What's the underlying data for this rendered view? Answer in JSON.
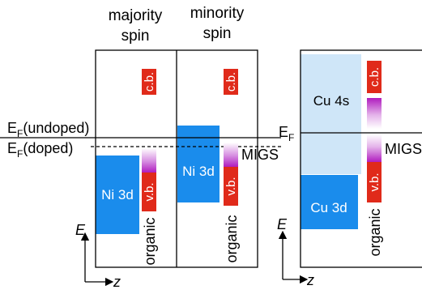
{
  "headers": {
    "majority": [
      "majority",
      "spin"
    ],
    "minority": [
      "minority",
      "spin"
    ]
  },
  "left_labels": {
    "ef_undoped_main": "E",
    "ef_undoped_sub": "F",
    "ef_undoped_suffix": "(undoped)",
    "ef_doped_main": "E",
    "ef_doped_sub": "F",
    "ef_doped_suffix": "(doped)"
  },
  "right_labels": {
    "ef_main": "E",
    "ef_sub": "F"
  },
  "tags": {
    "cb": "c.b.",
    "vb": "v.b.",
    "organic": "organic",
    "migs": "MIGS",
    "migs_cut": "MIGS"
  },
  "bands": {
    "ni3d": "Ni 3d",
    "cu4s": "Cu 4s",
    "cu3d": "Cu 3d"
  },
  "axes": {
    "energy": "E",
    "position": "z"
  },
  "colors": {
    "ni_band": "#1a8cec",
    "cu4s_band": "#cfe6f8",
    "cu3d_band": "#1a8cec",
    "tag_red": "#e02a1a",
    "migs_purple": "#b01cbf",
    "line": "#000000"
  }
}
